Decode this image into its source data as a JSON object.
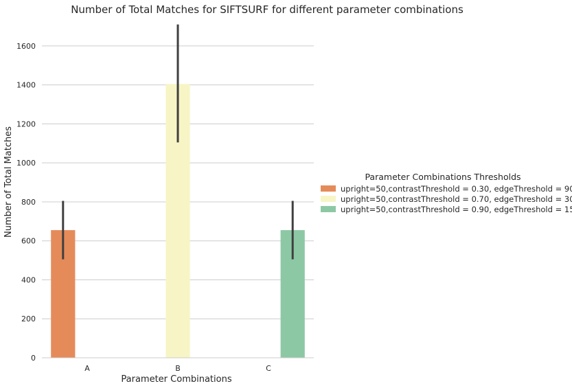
{
  "chart_data": {
    "type": "bar",
    "title": "Number of Total Matches for SIFTSURF for different parameter combinations",
    "xlabel": "Parameter Combinations",
    "ylabel": "Number of Total Matches",
    "categories": [
      "A",
      "B",
      "C"
    ],
    "ylim": [
      0,
      1730
    ],
    "yticks": [
      0,
      200,
      400,
      600,
      800,
      1000,
      1200,
      1400,
      1600
    ],
    "grid": "horizontal",
    "legend": {
      "title": "Parameter Combinations Thresholds",
      "placement": "right"
    },
    "series": [
      {
        "name": "upright=50,contrastThreshold = 0.30, edgeThreshold = 90",
        "color": "#e58b5a",
        "values": [
          655,
          null,
          null
        ],
        "error_low": [
          505,
          null,
          null
        ],
        "error_high": [
          805,
          null,
          null
        ]
      },
      {
        "name": "upright=50,contrastThreshold = 0.70, edgeThreshold = 30",
        "color": "#f7f5c5",
        "values": [
          null,
          1405,
          null
        ],
        "error_low": [
          null,
          1105,
          null
        ],
        "error_high": [
          null,
          1710,
          null
        ]
      },
      {
        "name": "upright=50,contrastThreshold = 0.90, edgeThreshold = 15",
        "color": "#8dc8a4",
        "values": [
          null,
          null,
          655
        ],
        "error_low": [
          null,
          null,
          505
        ],
        "error_high": [
          null,
          null,
          805
        ]
      }
    ]
  }
}
